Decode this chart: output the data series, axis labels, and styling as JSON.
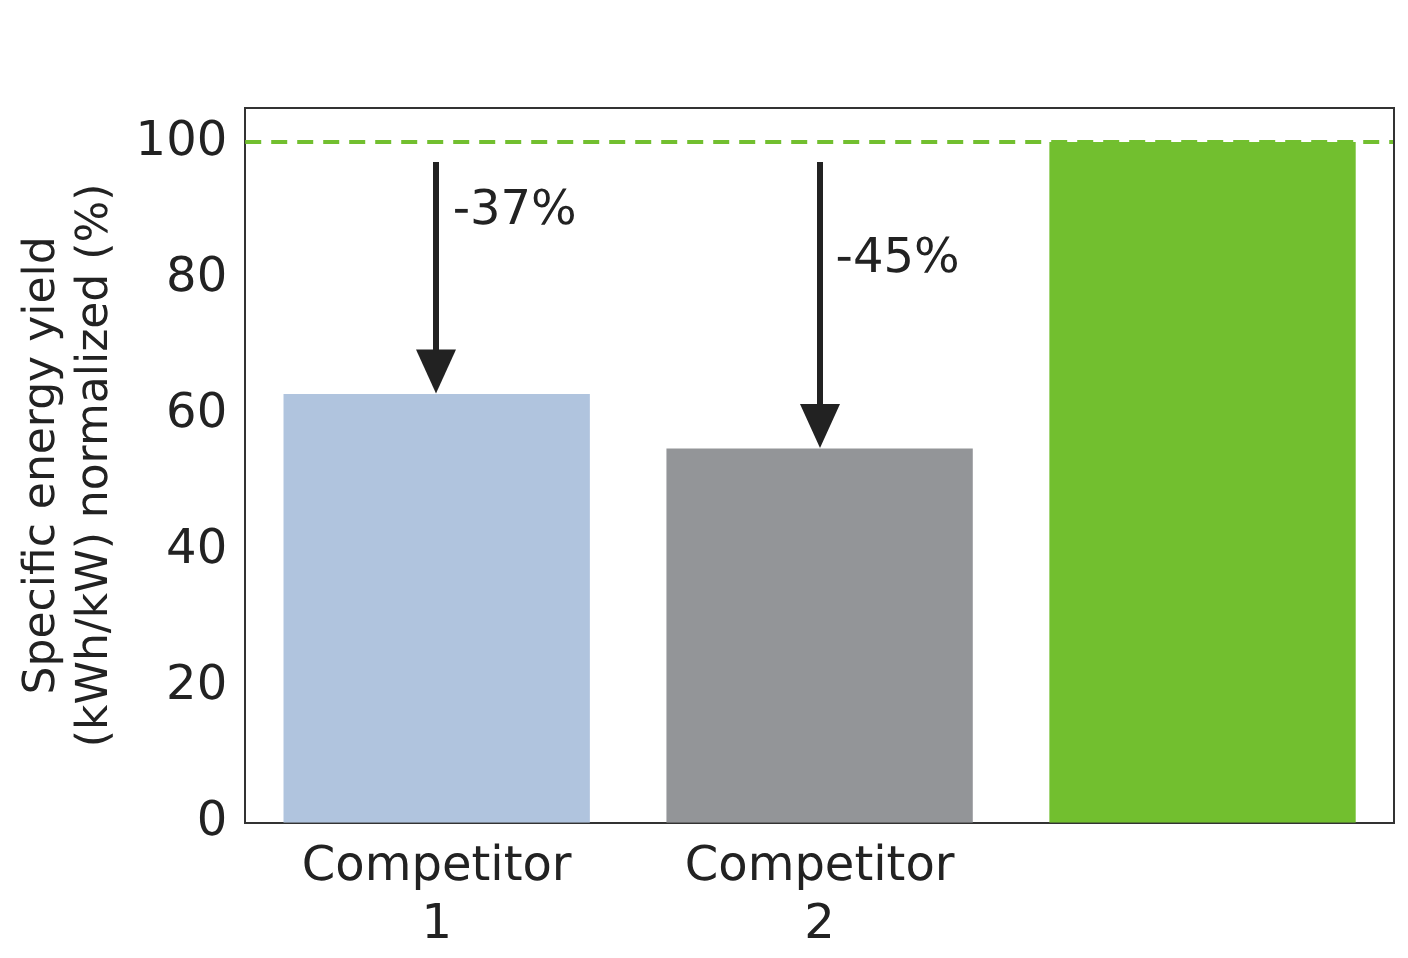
{
  "chart_data": {
    "type": "bar",
    "ylabel": "Specific energy yield (kWh/kW) normalized (%)",
    "categories": [
      "Competitor 1",
      "Competitor 2",
      null
    ],
    "values": [
      63,
      55,
      100
    ],
    "colors": [
      "#b0c4de",
      "#939598",
      "#72bf2f"
    ],
    "ylim": [
      0,
      105
    ],
    "yticks": [
      0,
      20,
      40,
      60,
      80,
      100
    ],
    "grid": false,
    "legend": false,
    "ref_lines": [
      {
        "axis": "y",
        "value": 100,
        "color": "#72bf2f",
        "line_style": "dashed"
      }
    ],
    "annotations": [
      "-37%",
      "-45%"
    ]
  }
}
